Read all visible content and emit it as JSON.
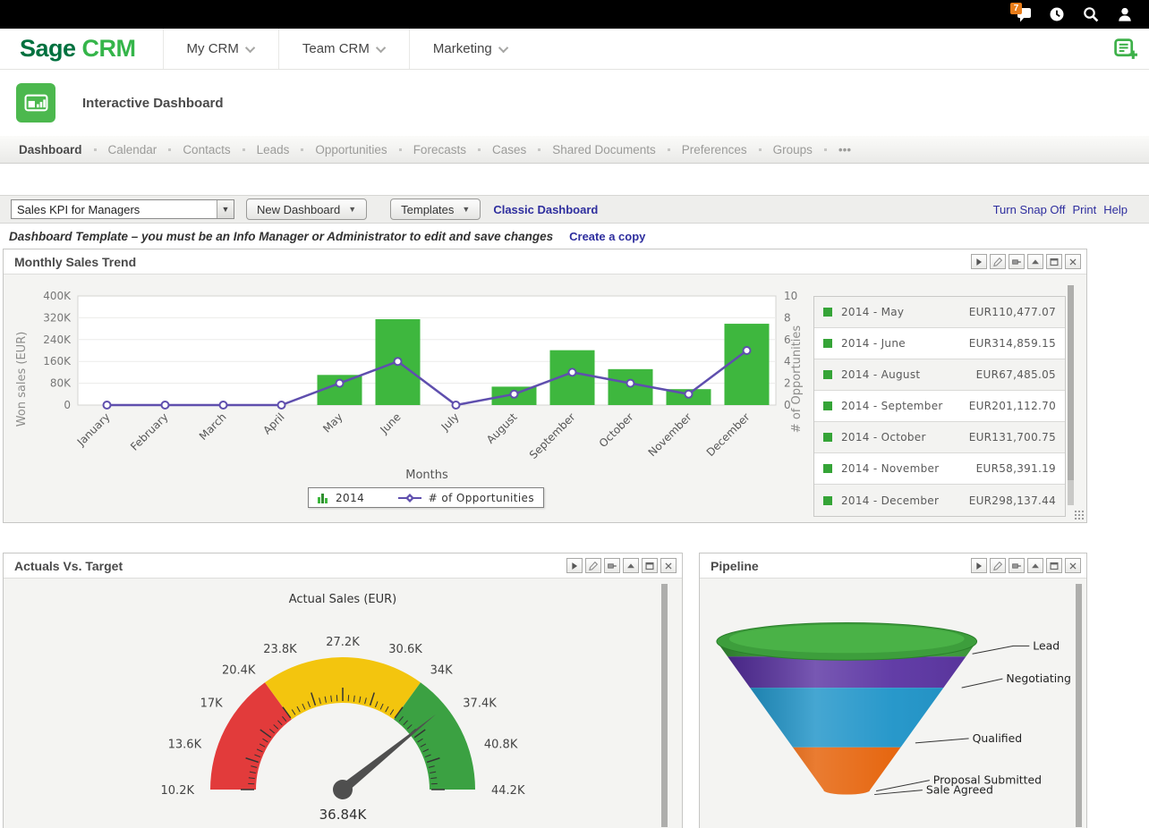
{
  "topbar": {
    "badge": "7",
    "icons": [
      "notification",
      "clock",
      "search",
      "user"
    ]
  },
  "brand": {
    "sage": "Sage",
    "crm": "CRM"
  },
  "nav": {
    "items": [
      "My CRM",
      "Team CRM",
      "Marketing"
    ]
  },
  "header": {
    "title": "Interactive Dashboard"
  },
  "tabs": {
    "active": "Dashboard",
    "items": [
      "Dashboard",
      "Calendar",
      "Contacts",
      "Leads",
      "Opportunities",
      "Forecasts",
      "Cases",
      "Shared Documents",
      "Preferences",
      "Groups",
      "•••"
    ]
  },
  "toolbar": {
    "dashboard_select": "Sales KPI for Managers",
    "new_dashboard_label": "New Dashboard",
    "templates_label": "Templates",
    "classic_dashboard_label": "Classic Dashboard",
    "snap_label": "Turn Snap Off",
    "print_label": "Print",
    "help_label": "Help"
  },
  "notice": {
    "text": "Dashboard Template – you must be an Info Manager or Administrator to edit and save changes",
    "link_label": "Create a copy"
  },
  "panels": {
    "monthly": {
      "title": "Monthly Sales Trend"
    },
    "actuals": {
      "title": "Actuals Vs. Target"
    },
    "pipeline": {
      "title": "Pipeline"
    }
  },
  "ui": {
    "panel_buttons": [
      "run",
      "edit",
      "pin",
      "collapse",
      "maximize",
      "close"
    ]
  },
  "colors": {
    "brand_dark_green": "#00713f",
    "brand_green": "#35b54a",
    "accent_green": "#4cb84e",
    "bar_green": "#3eb73e",
    "line_purple": "#5f4fae",
    "link_navy": "#2e2e9e",
    "badge_orange": "#e87d1a"
  },
  "chart_data": [
    {
      "type": "bar",
      "title": "Monthly Sales Trend",
      "categories": [
        "January",
        "February",
        "March",
        "April",
        "May",
        "June",
        "July",
        "August",
        "September",
        "October",
        "November",
        "December"
      ],
      "series": [
        {
          "name": "2014",
          "type": "bar",
          "axis": "left",
          "color": "#3eb73e",
          "values": [
            0,
            0,
            0,
            0,
            110477.07,
            314859.15,
            0,
            67485.05,
            201112.7,
            131700.75,
            58391.19,
            298137.44
          ]
        },
        {
          "name": "# of Opportunities",
          "type": "line",
          "axis": "right",
          "color": "#5f4fae",
          "values": [
            0,
            0,
            0,
            0,
            2,
            4,
            0,
            1,
            3,
            2,
            1,
            5
          ]
        }
      ],
      "xlabel": "Months",
      "ylabel_left": "Won sales (EUR)",
      "ylabel_right": "# of Opportunities",
      "yticks_left": [
        "400K",
        "320K",
        "240K",
        "160K",
        "80K",
        "0"
      ],
      "yticks_right": [
        "10",
        "8",
        "6",
        "4",
        "2",
        "0"
      ],
      "ylim_left": [
        0,
        400000
      ],
      "ylim_right": [
        0,
        10
      ],
      "grid": true,
      "legend_position": "right",
      "legend_table": [
        {
          "label": "2014 - May",
          "value": "EUR110,477.07"
        },
        {
          "label": "2014 - June",
          "value": "EUR314,859.15"
        },
        {
          "label": "2014 - August",
          "value": "EUR67,485.05"
        },
        {
          "label": "2014 - September",
          "value": "EUR201,112.70"
        },
        {
          "label": "2014 - October",
          "value": "EUR131,700.75"
        },
        {
          "label": "2014 - November",
          "value": "EUR58,391.19"
        },
        {
          "label": "2014 - December",
          "value": "EUR298,137.44"
        }
      ]
    },
    {
      "type": "gauge",
      "title": "Actual Sales (EUR)",
      "min": 10200,
      "max": 44200,
      "value": 36840,
      "value_label": "36.84K",
      "tick_labels": [
        "10.2K",
        "13.6K",
        "17K",
        "20.4K",
        "23.8K",
        "27.2K",
        "30.6K",
        "34K",
        "37.4K",
        "40.8K",
        "44.2K"
      ],
      "zones": [
        {
          "from": 10200,
          "to": 20400,
          "color": "#e23b3b"
        },
        {
          "from": 20400,
          "to": 34000,
          "color": "#f3c50e"
        },
        {
          "from": 34000,
          "to": 44200,
          "color": "#3ba142"
        }
      ]
    },
    {
      "type": "funnel",
      "stages": [
        {
          "label": "Lead",
          "color": "#3d9e3c"
        },
        {
          "label": "Negotiating",
          "color": "#5a33a2"
        },
        {
          "label": "Qualified",
          "color": "#1d93c8"
        },
        {
          "label": "Proposal Submitted",
          "color": "#e55f04"
        },
        {
          "label": "Sale Agreed",
          "color": "#e55f04"
        }
      ]
    }
  ]
}
